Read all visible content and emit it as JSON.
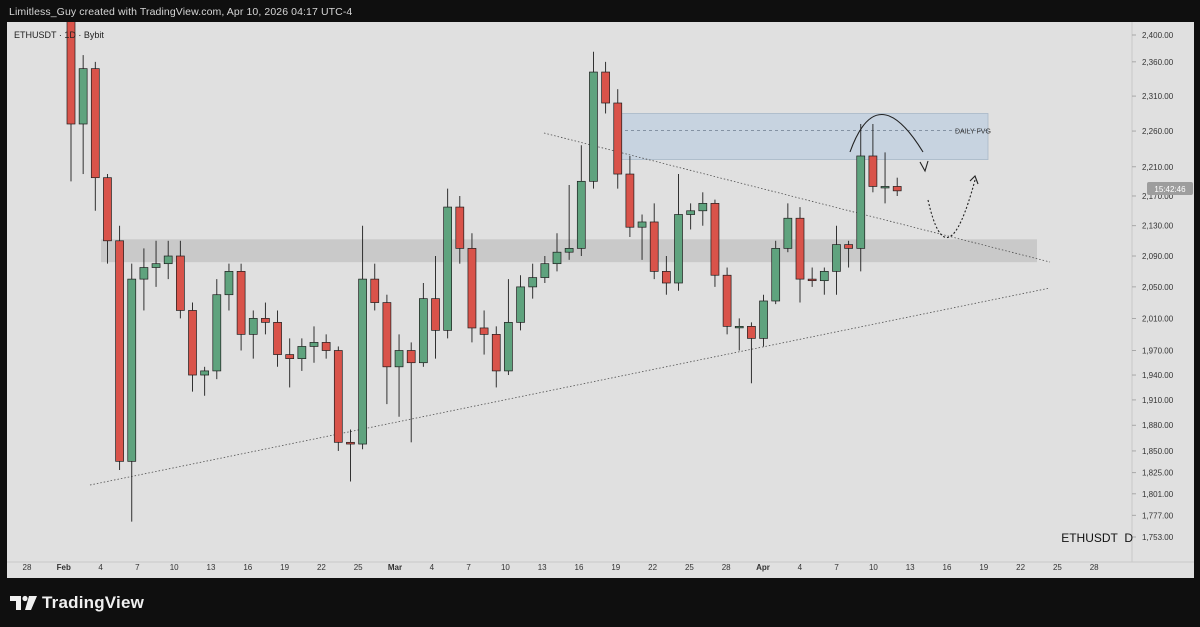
{
  "header": {
    "attribution": "Limitless_Guy created with TradingView.com, Apr 10, 2026 04:17 UTC-4"
  },
  "footer": {
    "brand": "TradingView",
    "logo_icon": "tradingview-logo-icon"
  },
  "colors": {
    "up": "#5fa37e",
    "down": "#d9534a",
    "background": "#e0e0e0",
    "zone": "#c4c4c4",
    "fvg": "#c7d3e0"
  },
  "chart_data": {
    "type": "candlestick",
    "symbol_label": "ETHUSDT · 1D · Bybit",
    "watermark": "ETHUSDT  D",
    "price_badge": "15:42:46",
    "annotation": "DAILY FVG",
    "y_ticks": [
      "2,400.00",
      "2,360.00",
      "2,310.00",
      "2,260.00",
      "2,210.00",
      "2,170.00",
      "2,130.00",
      "2,090.00",
      "2,050.00",
      "2,010.00",
      "1,970.00",
      "1,940.00",
      "1,910.00",
      "1,880.00",
      "1,850.00",
      "1,825.00",
      "1,801.00",
      "1,777.00",
      "1,753.00"
    ],
    "x_ticks": [
      "28",
      "Feb",
      "4",
      "7",
      "10",
      "13",
      "16",
      "19",
      "22",
      "25",
      "Mar",
      "4",
      "7",
      "10",
      "13",
      "16",
      "19",
      "22",
      "25",
      "28",
      "Apr",
      "4",
      "7",
      "10",
      "13",
      "16",
      "19",
      "22",
      "25",
      "28"
    ],
    "ylim": [
      1753,
      2400
    ],
    "candles": [
      {
        "date": "Feb 1",
        "open": 2530,
        "high": 2560,
        "low": 2190,
        "close": 2270
      },
      {
        "date": "Feb 2",
        "open": 2270,
        "high": 2370,
        "low": 2200,
        "close": 2350
      },
      {
        "date": "Feb 3",
        "open": 2350,
        "high": 2360,
        "low": 2150,
        "close": 2195
      },
      {
        "date": "Feb 4",
        "open": 2195,
        "high": 2200,
        "low": 2080,
        "close": 2110
      },
      {
        "date": "Feb 5",
        "open": 2110,
        "high": 2130,
        "low": 1828,
        "close": 1838
      },
      {
        "date": "Feb 6",
        "open": 1838,
        "high": 2080,
        "low": 1770,
        "close": 2060
      },
      {
        "date": "Feb 7",
        "open": 2060,
        "high": 2100,
        "low": 2020,
        "close": 2075
      },
      {
        "date": "Feb 8",
        "open": 2075,
        "high": 2110,
        "low": 2050,
        "close": 2080
      },
      {
        "date": "Feb 9",
        "open": 2080,
        "high": 2110,
        "low": 2060,
        "close": 2090
      },
      {
        "date": "Feb 10",
        "open": 2090,
        "high": 2110,
        "low": 2010,
        "close": 2020
      },
      {
        "date": "Feb 11",
        "open": 2020,
        "high": 2030,
        "low": 1920,
        "close": 1940
      },
      {
        "date": "Feb 12",
        "open": 1940,
        "high": 1950,
        "low": 1915,
        "close": 1945
      },
      {
        "date": "Feb 13",
        "open": 1945,
        "high": 2060,
        "low": 1935,
        "close": 2040
      },
      {
        "date": "Feb 14",
        "open": 2040,
        "high": 2080,
        "low": 2020,
        "close": 2070
      },
      {
        "date": "Feb 15",
        "open": 2070,
        "high": 2080,
        "low": 1970,
        "close": 1990
      },
      {
        "date": "Feb 16",
        "open": 1990,
        "high": 2020,
        "low": 1960,
        "close": 2010
      },
      {
        "date": "Feb 17",
        "open": 2010,
        "high": 2030,
        "low": 1990,
        "close": 2005
      },
      {
        "date": "Feb 18",
        "open": 2005,
        "high": 2020,
        "low": 1950,
        "close": 1965
      },
      {
        "date": "Feb 19",
        "open": 1965,
        "high": 1985,
        "low": 1925,
        "close": 1960
      },
      {
        "date": "Feb 20",
        "open": 1960,
        "high": 1985,
        "low": 1945,
        "close": 1975
      },
      {
        "date": "Feb 21",
        "open": 1975,
        "high": 2000,
        "low": 1955,
        "close": 1980
      },
      {
        "date": "Feb 22",
        "open": 1980,
        "high": 1990,
        "low": 1960,
        "close": 1970
      },
      {
        "date": "Feb 23",
        "open": 1970,
        "high": 1975,
        "low": 1850,
        "close": 1860
      },
      {
        "date": "Feb 24",
        "open": 1860,
        "high": 1875,
        "low": 1815,
        "close": 1858
      },
      {
        "date": "Feb 25",
        "open": 1858,
        "high": 2130,
        "low": 1852,
        "close": 2060
      },
      {
        "date": "Feb 26",
        "open": 2060,
        "high": 2080,
        "low": 2020,
        "close": 2030
      },
      {
        "date": "Feb 27",
        "open": 2030,
        "high": 2040,
        "low": 1905,
        "close": 1950
      },
      {
        "date": "Feb 28",
        "open": 1950,
        "high": 1990,
        "low": 1890,
        "close": 1970
      },
      {
        "date": "Mar 1",
        "open": 1970,
        "high": 1980,
        "low": 1860,
        "close": 1955
      },
      {
        "date": "Mar 2",
        "open": 1955,
        "high": 2055,
        "low": 1950,
        "close": 2035
      },
      {
        "date": "Mar 3",
        "open": 2035,
        "high": 2090,
        "low": 1960,
        "close": 1995
      },
      {
        "date": "Mar 4",
        "open": 1995,
        "high": 2180,
        "low": 1985,
        "close": 2155
      },
      {
        "date": "Mar 5",
        "open": 2155,
        "high": 2170,
        "low": 2080,
        "close": 2100
      },
      {
        "date": "Mar 6",
        "open": 2100,
        "high": 2120,
        "low": 1980,
        "close": 1998
      },
      {
        "date": "Mar 7",
        "open": 1998,
        "high": 2020,
        "low": 1965,
        "close": 1990
      },
      {
        "date": "Mar 8",
        "open": 1990,
        "high": 2000,
        "low": 1925,
        "close": 1945
      },
      {
        "date": "Mar 9",
        "open": 1945,
        "high": 2060,
        "low": 1940,
        "close": 2005
      },
      {
        "date": "Mar 10",
        "open": 2005,
        "high": 2065,
        "low": 1995,
        "close": 2050
      },
      {
        "date": "Mar 11",
        "open": 2050,
        "high": 2080,
        "low": 2035,
        "close": 2062
      },
      {
        "date": "Mar 12",
        "open": 2062,
        "high": 2090,
        "low": 2055,
        "close": 2080
      },
      {
        "date": "Mar 13",
        "open": 2080,
        "high": 2120,
        "low": 2070,
        "close": 2095
      },
      {
        "date": "Mar 14",
        "open": 2095,
        "high": 2185,
        "low": 2085,
        "close": 2100
      },
      {
        "date": "Mar 15",
        "open": 2100,
        "high": 2240,
        "low": 2090,
        "close": 2190
      },
      {
        "date": "Mar 16",
        "open": 2190,
        "high": 2375,
        "low": 2180,
        "close": 2345
      },
      {
        "date": "Mar 17",
        "open": 2345,
        "high": 2360,
        "low": 2285,
        "close": 2300
      },
      {
        "date": "Mar 18",
        "open": 2300,
        "high": 2320,
        "low": 2180,
        "close": 2200
      },
      {
        "date": "Mar 19",
        "open": 2200,
        "high": 2225,
        "low": 2115,
        "close": 2128
      },
      {
        "date": "Mar 20",
        "open": 2128,
        "high": 2145,
        "low": 2085,
        "close": 2135
      },
      {
        "date": "Mar 21",
        "open": 2135,
        "high": 2160,
        "low": 2060,
        "close": 2070
      },
      {
        "date": "Mar 22",
        "open": 2070,
        "high": 2090,
        "low": 2040,
        "close": 2055
      },
      {
        "date": "Mar 23",
        "open": 2055,
        "high": 2200,
        "low": 2045,
        "close": 2145
      },
      {
        "date": "Mar 24",
        "open": 2145,
        "high": 2160,
        "low": 2125,
        "close": 2150
      },
      {
        "date": "Mar 25",
        "open": 2150,
        "high": 2175,
        "low": 2130,
        "close": 2160
      },
      {
        "date": "Mar 26",
        "open": 2160,
        "high": 2165,
        "low": 2050,
        "close": 2065
      },
      {
        "date": "Mar 27",
        "open": 2065,
        "high": 2075,
        "low": 1990,
        "close": 2000
      },
      {
        "date": "Mar 28",
        "open": 2000,
        "high": 2010,
        "low": 1970,
        "close": 2000
      },
      {
        "date": "Mar 29",
        "open": 2000,
        "high": 2005,
        "low": 1930,
        "close": 1985
      },
      {
        "date": "Mar 30",
        "open": 1985,
        "high": 2040,
        "low": 1975,
        "close": 2032
      },
      {
        "date": "Mar 31",
        "open": 2032,
        "high": 2110,
        "low": 2028,
        "close": 2100
      },
      {
        "date": "Apr 1",
        "open": 2100,
        "high": 2160,
        "low": 2095,
        "close": 2140
      },
      {
        "date": "Apr 2",
        "open": 2140,
        "high": 2155,
        "low": 2030,
        "close": 2060
      },
      {
        "date": "Apr 3",
        "open": 2060,
        "high": 2075,
        "low": 2050,
        "close": 2058
      },
      {
        "date": "Apr 4",
        "open": 2058,
        "high": 2075,
        "low": 2040,
        "close": 2070
      },
      {
        "date": "Apr 5",
        "open": 2070,
        "high": 2130,
        "low": 2040,
        "close": 2105
      },
      {
        "date": "Apr 6",
        "open": 2105,
        "high": 2110,
        "low": 2075,
        "close": 2100
      },
      {
        "date": "Apr 7",
        "open": 2100,
        "high": 2270,
        "low": 2070,
        "close": 2225
      },
      {
        "date": "Apr 8",
        "open": 2225,
        "high": 2270,
        "low": 2175,
        "close": 2183
      },
      {
        "date": "Apr 9",
        "open": 2183,
        "high": 2230,
        "low": 2160,
        "close": 2183
      },
      {
        "date": "Apr 10",
        "open": 2183,
        "high": 2195,
        "low": 2170,
        "close": 2177
      }
    ],
    "zones": [
      {
        "name": "support-resistance-zone",
        "from": 2082,
        "to": 2112
      },
      {
        "name": "daily-fvg-zone",
        "from": 2220,
        "to": 2285
      }
    ],
    "grid": false,
    "scale": "log"
  }
}
